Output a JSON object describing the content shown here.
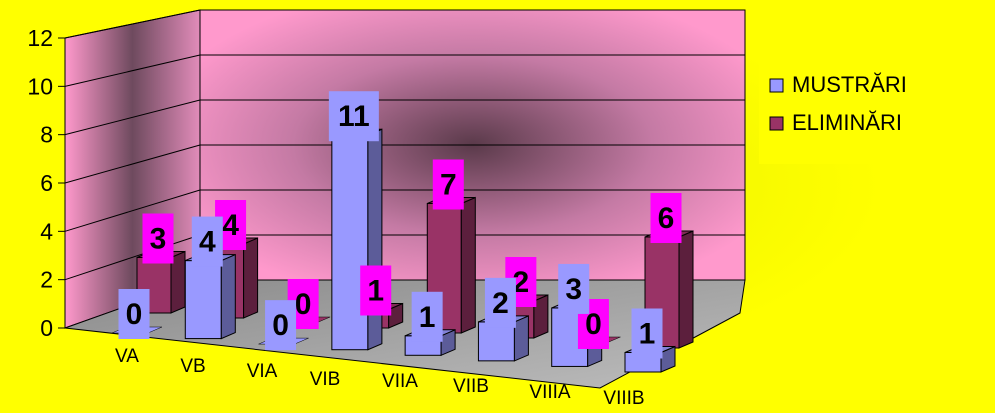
{
  "chart_data": {
    "type": "bar",
    "title": "",
    "xlabel": "",
    "ylabel": "",
    "ylim": [
      0,
      12
    ],
    "yticks": [
      0,
      2,
      4,
      6,
      8,
      10,
      12
    ],
    "categories": [
      "VA",
      "VB",
      "VIA",
      "VIB",
      "VIIA",
      "VIIB",
      "VIIIA",
      "VIIIB"
    ],
    "series": [
      {
        "name": "MUSTRĂRI",
        "values": [
          0,
          4,
          0,
          11,
          1,
          2,
          3,
          1
        ],
        "color": "#9999ff",
        "label_bg": "#9999ff"
      },
      {
        "name": "ELIMINĂRI",
        "values": [
          3,
          4,
          0,
          1,
          7,
          2,
          0,
          6
        ],
        "color": "#993366",
        "label_bg": "#ff00ff"
      }
    ],
    "legend": "right",
    "grid": true,
    "style": "3d-clustered-bar",
    "colors": {
      "background": "#ffff00",
      "back_wall": "#ff99cc",
      "floor": "#c0c0c0",
      "grid": "#000000"
    }
  }
}
